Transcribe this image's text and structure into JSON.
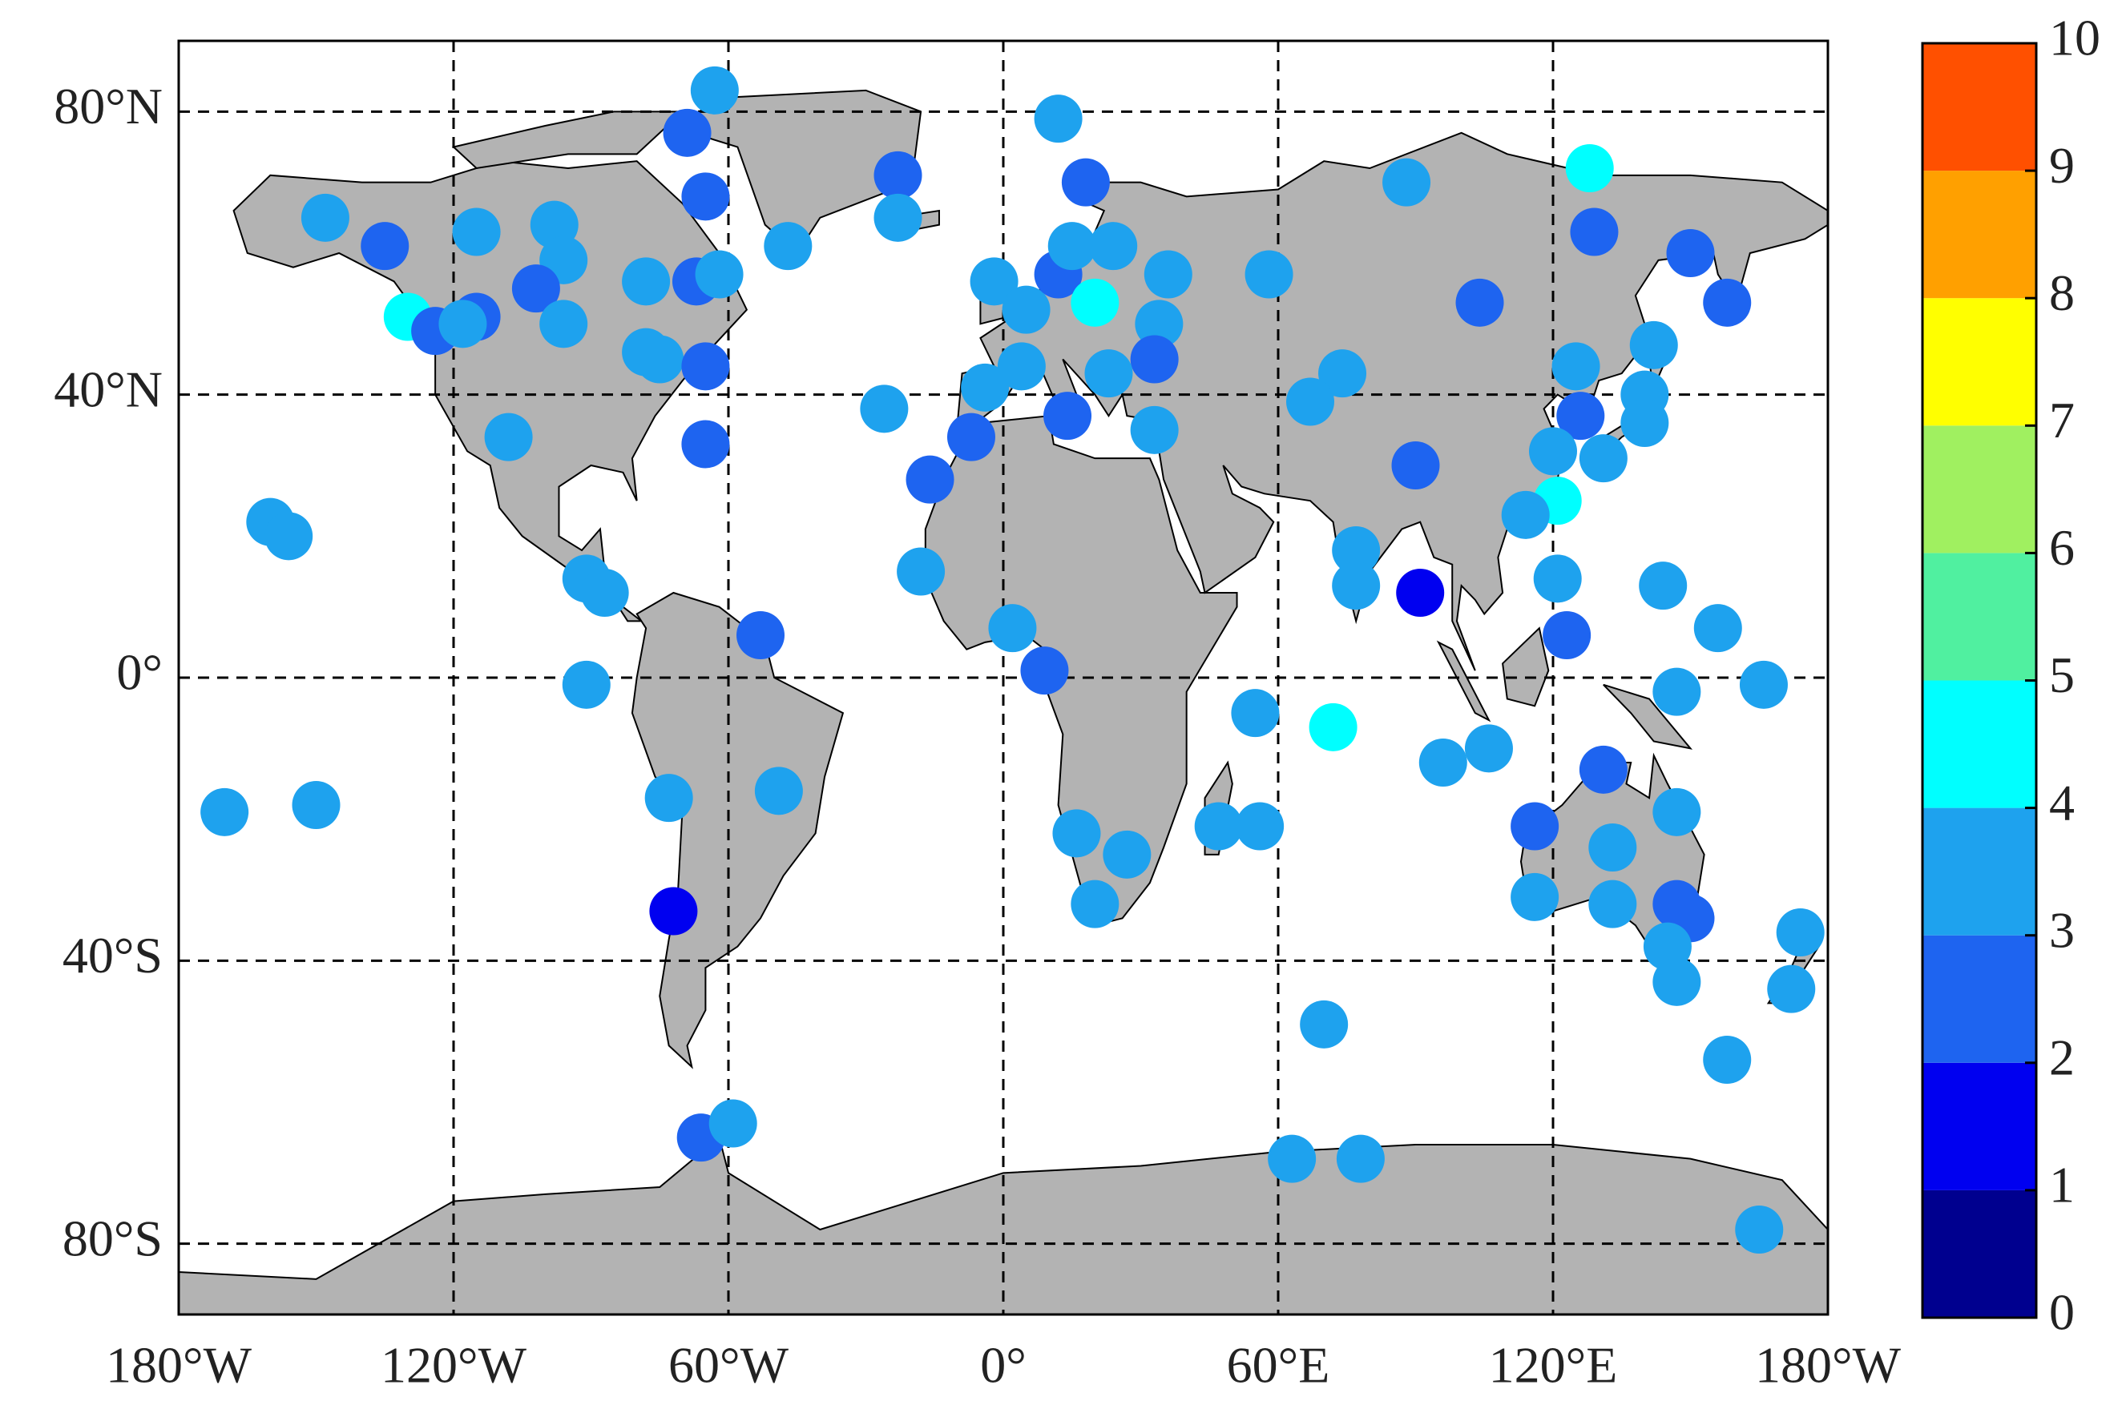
{
  "chart_data": {
    "type": "scatter",
    "x": [
      -63,
      -69,
      -65,
      -23,
      -23,
      12,
      18,
      -148,
      -135,
      -115,
      -98,
      -96,
      -102,
      -115,
      -130,
      -124,
      -118,
      -96,
      -78,
      -67,
      -62,
      -47,
      -78,
      -75,
      -65,
      -65,
      -108,
      -160,
      -156,
      -91,
      -87,
      -91,
      -53,
      -170,
      -150,
      -73,
      -49,
      -72,
      -66,
      -59,
      -26,
      -16,
      -7,
      -18,
      2,
      9,
      -2,
      5,
      12,
      15,
      24,
      20,
      36,
      34,
      33,
      4,
      -4,
      14,
      23,
      33,
      88,
      128,
      129,
      150,
      158,
      58,
      104,
      74,
      67,
      125,
      142,
      140,
      140,
      126,
      120,
      131,
      121,
      114,
      90,
      77,
      77,
      91,
      121,
      123,
      144,
      156,
      147,
      166,
      55,
      72,
      96,
      106,
      131,
      147,
      116,
      133,
      116,
      133,
      147,
      150,
      145,
      147,
      174,
      172,
      158,
      70,
      47,
      56,
      16,
      27,
      20,
      63,
      78,
      165
    ],
    "y": [
      83,
      77,
      68,
      71,
      65,
      79,
      70,
      65,
      61,
      63,
      64,
      59,
      55,
      51,
      51,
      49,
      50,
      50,
      56,
      56,
      57,
      61,
      46,
      45,
      44,
      33,
      34,
      22,
      20,
      14,
      12,
      -1,
      6,
      -19,
      -18,
      -17,
      -16,
      -33,
      -65,
      -63,
      38,
      28,
      34,
      15,
      7,
      1,
      56,
      52,
      57,
      61,
      61,
      53,
      57,
      50,
      45,
      44,
      41,
      37,
      43,
      35,
      70,
      72,
      63,
      60,
      53,
      57,
      53,
      43,
      39,
      44,
      47,
      40,
      36,
      37,
      32,
      31,
      25,
      23,
      30,
      18,
      13,
      12,
      14,
      6,
      13,
      7,
      -2,
      -1,
      -5,
      -7,
      -12,
      -10,
      -13,
      -19,
      -21,
      -24,
      -31,
      -32,
      -32,
      -34,
      -38,
      -43,
      -36,
      -44,
      -54,
      -49,
      -21,
      -21,
      -22,
      -25,
      -32,
      -68,
      -68,
      -78
    ],
    "values": [
      3.5,
      2.5,
      2.5,
      2.5,
      3.5,
      3.5,
      2.5,
      3.5,
      2.5,
      3.5,
      3.5,
      3.5,
      2.5,
      2.5,
      4.5,
      2.5,
      3.5,
      3.5,
      3.5,
      2.5,
      3.5,
      3.5,
      3.5,
      3.5,
      2.5,
      2.5,
      3.5,
      3.5,
      3.5,
      3.5,
      3.5,
      3.5,
      2.5,
      3.5,
      3.5,
      3.5,
      3.5,
      1.5,
      2.5,
      3.5,
      3.5,
      2.5,
      2.5,
      3.5,
      3.5,
      2.5,
      3.5,
      3.5,
      2.5,
      3.5,
      3.5,
      4.5,
      3.5,
      3.5,
      2.5,
      3.5,
      3.5,
      2.5,
      3.5,
      3.5,
      3.5,
      4.5,
      2.5,
      2.5,
      2.5,
      3.5,
      2.5,
      3.5,
      3.5,
      3.5,
      3.5,
      3.5,
      3.5,
      2.5,
      3.5,
      3.5,
      4.5,
      3.5,
      2.5,
      3.5,
      3.5,
      1.5,
      3.5,
      2.5,
      3.5,
      3.5,
      3.5,
      3.5,
      3.5,
      4.5,
      3.5,
      3.5,
      2.5,
      3.5,
      2.5,
      3.5,
      3.5,
      3.5,
      2.5,
      2.5,
      3.5,
      3.5,
      3.5,
      3.5,
      3.5,
      3.5,
      3.5,
      3.5,
      3.5,
      3.5,
      3.5,
      3.5,
      3.5,
      3.5
    ],
    "xlim": [
      -180,
      180
    ],
    "ylim": [
      -90,
      90
    ],
    "xticks": [
      {
        "value": -180,
        "label": "180°W"
      },
      {
        "value": -120,
        "label": "120°W"
      },
      {
        "value": -60,
        "label": "60°W"
      },
      {
        "value": 0,
        "label": "0°"
      },
      {
        "value": 60,
        "label": "60°E"
      },
      {
        "value": 120,
        "label": "120°E"
      },
      {
        "value": 180,
        "label": "180°W"
      }
    ],
    "yticks": [
      {
        "value": 80,
        "label": "80°N"
      },
      {
        "value": 40,
        "label": "40°N"
      },
      {
        "value": 0,
        "label": "0°"
      },
      {
        "value": -40,
        "label": "40°S"
      },
      {
        "value": -80,
        "label": "80°S"
      }
    ],
    "grid": true,
    "colorbar": {
      "ticks": [
        0,
        1,
        2,
        3,
        4,
        5,
        6,
        7,
        8,
        9,
        10
      ],
      "colors": [
        "#00008f",
        "#0000f0",
        "#1e64f0",
        "#1ea2ee",
        "#00ffff",
        "#50f0a0",
        "#a0f060",
        "#ffff00",
        "#ffa000",
        "#ff5000"
      ]
    }
  }
}
